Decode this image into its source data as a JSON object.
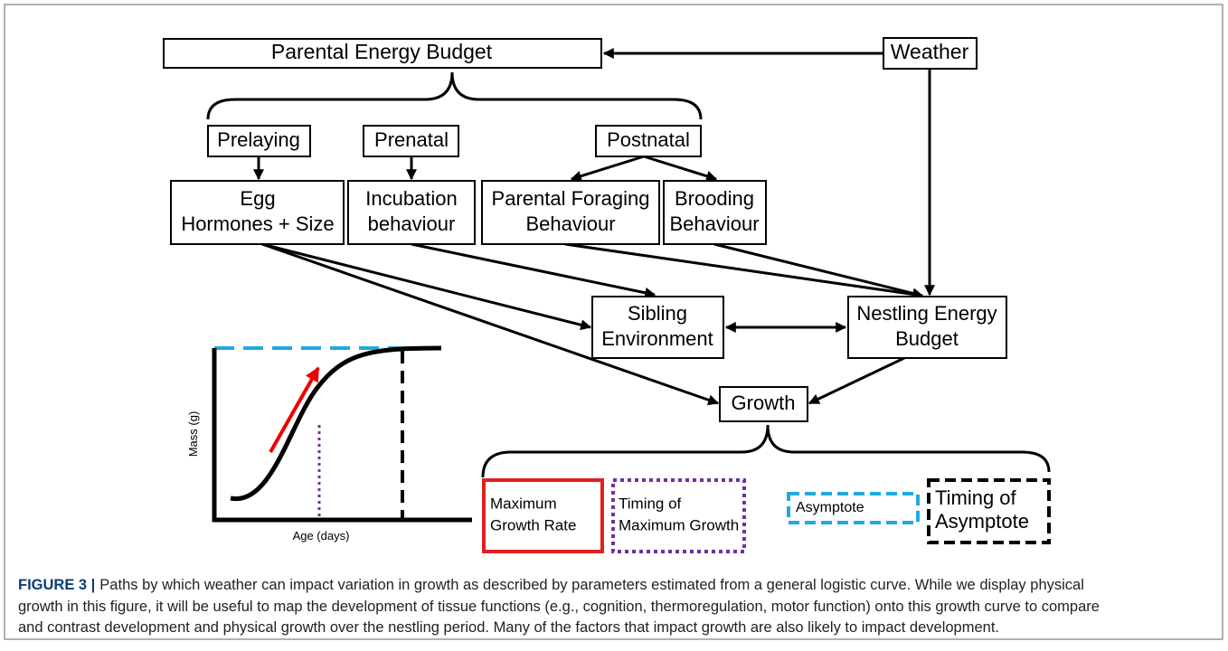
{
  "nodes": [
    {
      "lines": [
        "Parental Energy Budget"
      ]
    },
    {
      "lines": [
        "Weather"
      ]
    },
    {
      "lines": [
        "Prelaying"
      ]
    },
    {
      "lines": [
        "Prenatal"
      ]
    },
    {
      "lines": [
        "Postnatal"
      ]
    },
    {
      "lines": [
        "Egg",
        "Hormones + Size"
      ]
    },
    {
      "lines": [
        "Incubation",
        "behaviour"
      ]
    },
    {
      "lines": [
        "Parental Foraging",
        "Behaviour"
      ]
    },
    {
      "lines": [
        "Brooding",
        "Behaviour"
      ]
    },
    {
      "lines": [
        "Sibling",
        "Environment"
      ]
    },
    {
      "lines": [
        "Nestling Energy",
        "Budget"
      ]
    },
    {
      "lines": [
        "Growth"
      ]
    },
    {
      "lines": [
        "Maximum",
        "Growth Rate"
      ]
    },
    {
      "lines": [
        "Timing of",
        "Maximum Growth"
      ]
    },
    {
      "lines": [
        "Asymptote"
      ]
    },
    {
      "lines": [
        "Timing of",
        "Asymptote"
      ]
    }
  ],
  "inset": {
    "y_label": "Mass (g)",
    "x_label": "Age (days)"
  },
  "caption": {
    "label": "FIGURE 3 |",
    "lines": [
      "Paths by which weather can impact variation in growth as described by parameters estimated from a general logistic curve. While we display physical",
      "growth in this figure, it will be useful to map the development of tissue functions (e.g., cognition, thermoregulation, motor function) onto this growth curve to compare",
      "and contrast development and physical growth over the nestling period. Many of the factors that impact growth are also likely to impact development."
    ]
  }
}
